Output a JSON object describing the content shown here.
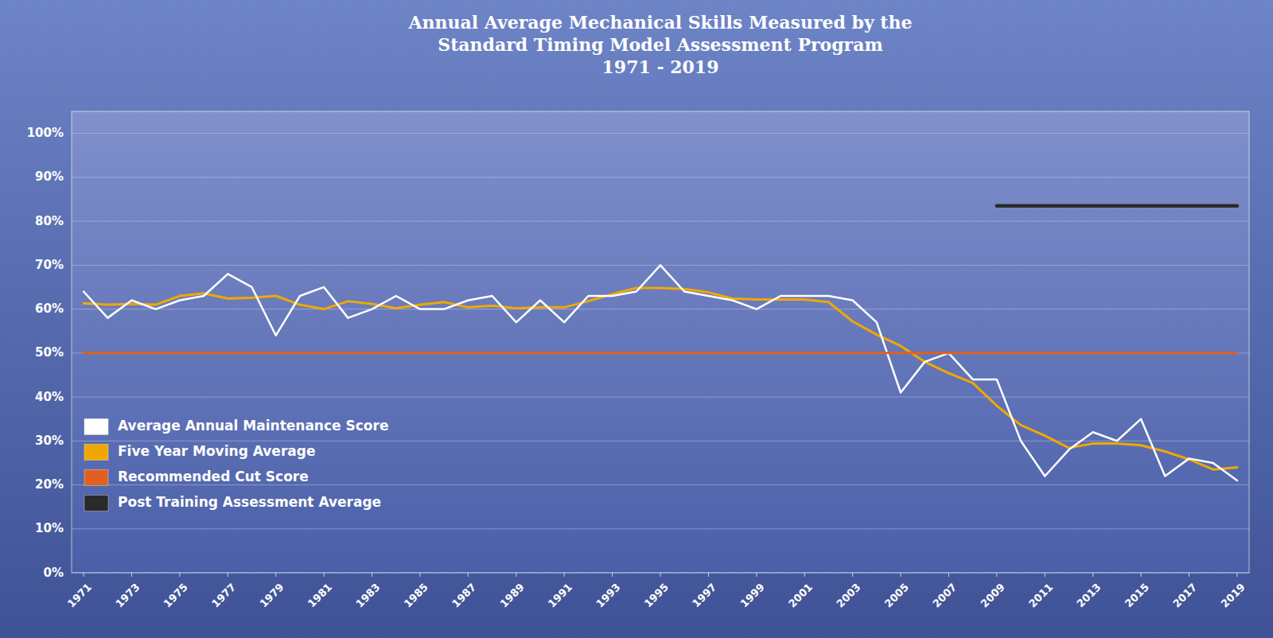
{
  "chart_data": {
    "type": "line",
    "title": "Annual Average Mechanical Skills Measured by the\nStandard Timing Model Assessment Program\n1971 - 2019",
    "x": [
      1971,
      1972,
      1973,
      1974,
      1975,
      1976,
      1977,
      1978,
      1979,
      1980,
      1981,
      1982,
      1983,
      1984,
      1985,
      1986,
      1987,
      1988,
      1989,
      1990,
      1991,
      1992,
      1993,
      1994,
      1995,
      1996,
      1997,
      1998,
      1999,
      2000,
      2001,
      2002,
      2003,
      2004,
      2005,
      2006,
      2007,
      2008,
      2009,
      2010,
      2011,
      2012,
      2013,
      2014,
      2015,
      2016,
      2017,
      2018,
      2019
    ],
    "series": [
      {
        "name": "Average Annual Maintenance Score",
        "color": "#ffffff",
        "values": [
          0.64,
          0.58,
          0.62,
          0.6,
          0.62,
          0.63,
          0.68,
          0.65,
          0.54,
          0.63,
          0.65,
          0.58,
          0.6,
          0.63,
          0.6,
          0.6,
          0.62,
          0.63,
          0.57,
          0.62,
          0.57,
          0.63,
          0.63,
          0.64,
          0.7,
          0.64,
          0.63,
          0.62,
          0.6,
          0.63,
          0.63,
          0.63,
          0.62,
          0.57,
          0.41,
          0.48,
          0.5,
          0.44,
          0.44,
          0.3,
          0.22,
          0.28,
          0.32,
          0.3,
          0.35,
          0.22,
          0.26,
          0.25,
          0.21
        ]
      },
      {
        "name": "Five Year Moving Average",
        "color": "#f0a800",
        "values": [
          0.6133333333333333,
          0.61,
          0.612,
          0.61,
          0.63,
          0.636,
          0.624,
          0.626,
          0.63,
          0.61,
          0.6,
          0.618,
          0.612,
          0.602,
          0.61,
          0.616,
          0.604,
          0.608,
          0.602,
          0.604,
          0.604,
          0.618,
          0.634,
          0.648,
          0.648,
          0.646,
          0.638,
          0.624,
          0.622,
          0.622,
          0.622,
          0.616,
          0.572,
          0.542,
          0.516,
          0.48,
          0.454,
          0.432,
          0.38,
          0.336,
          0.312,
          0.284,
          0.294,
          0.294,
          0.29,
          0.276,
          0.258,
          0.235,
          0.24
        ]
      },
      {
        "name": "Recommended Cut Score",
        "color": "#e06020",
        "values": [
          0.5,
          0.5,
          0.5,
          0.5,
          0.5,
          0.5,
          0.5,
          0.5,
          0.5,
          0.5,
          0.5,
          0.5,
          0.5,
          0.5,
          0.5,
          0.5,
          0.5,
          0.5,
          0.5,
          0.5,
          0.5,
          0.5,
          0.5,
          0.5,
          0.5,
          0.5,
          0.5,
          0.5,
          0.5,
          0.5,
          0.5,
          0.5,
          0.5,
          0.5,
          0.5,
          0.5,
          0.5,
          0.5,
          0.5,
          0.5,
          0.5,
          0.5,
          0.5,
          0.5,
          0.5,
          0.5,
          0.5,
          0.5,
          0.5
        ]
      },
      {
        "name": "Post Training Assessment Average",
        "color": "#2a2a2a",
        "values": [
          null,
          null,
          null,
          null,
          null,
          null,
          null,
          null,
          null,
          null,
          null,
          null,
          null,
          null,
          null,
          null,
          null,
          null,
          null,
          null,
          null,
          null,
          null,
          null,
          null,
          null,
          null,
          null,
          null,
          null,
          null,
          null,
          null,
          null,
          null,
          null,
          null,
          null,
          0.835,
          0.835,
          0.835,
          0.835,
          0.835,
          0.835,
          0.835,
          0.835,
          0.835,
          0.835,
          0.835
        ]
      }
    ],
    "xlim": [
      1970.5,
      2019.5
    ],
    "xticks": [
      1971,
      1973,
      1975,
      1977,
      1979,
      1981,
      1983,
      1985,
      1987,
      1989,
      1991,
      1993,
      1995,
      1997,
      1999,
      2001,
      2003,
      2005,
      2007,
      2009,
      2011,
      2013,
      2015,
      2017,
      2019
    ],
    "ylim": [
      0,
      1.05
    ],
    "yticks": [
      {
        "value": 0,
        "label": "0%"
      },
      {
        "value": 0.1,
        "label": "10%"
      },
      {
        "value": 0.2,
        "label": "20%"
      },
      {
        "value": 0.3,
        "label": "30%"
      },
      {
        "value": 0.4,
        "label": "40%"
      },
      {
        "value": 0.5,
        "label": "50%"
      },
      {
        "value": 0.6,
        "label": "60%"
      },
      {
        "value": 0.7,
        "label": "70%"
      },
      {
        "value": 0.8,
        "label": "80%"
      },
      {
        "value": 0.9,
        "label": "90%"
      },
      {
        "value": 1.0,
        "label": "100%"
      }
    ],
    "grid": true,
    "legend": "lower left"
  }
}
